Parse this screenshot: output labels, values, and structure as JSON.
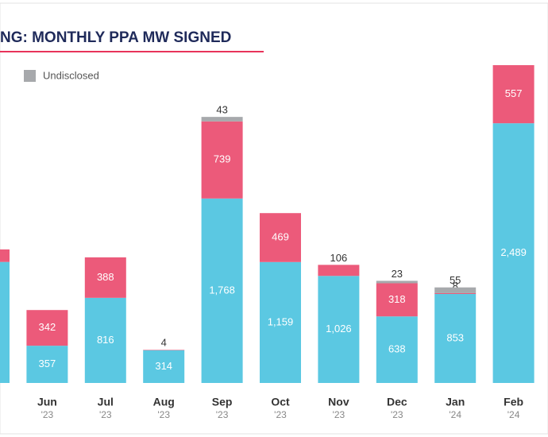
{
  "chart_data": {
    "type": "stacked-bar",
    "title": "NG: MONTHLY PPA MW SIGNED",
    "categories": [
      null,
      "Jun",
      "Jul",
      "Aug",
      "Sep",
      "Oct",
      "Nov",
      "Dec",
      "Jan",
      "Feb"
    ],
    "years": [
      null,
      "'23",
      "'23",
      "'23",
      "'23",
      "'23",
      "'23",
      "'23",
      "'24",
      "'24"
    ],
    "series": [
      {
        "color": "#5bc8e2",
        "values": [
          1160,
          357,
          816,
          314,
          1768,
          1159,
          1026,
          638,
          853,
          2489
        ],
        "value_labels": [
          null,
          "357",
          "816",
          "314",
          "1,768",
          "1,159",
          "1,026",
          "638",
          "853",
          "2,489"
        ]
      },
      {
        "color": "#ec5a7a",
        "values": [
          120,
          342,
          388,
          4,
          739,
          469,
          106,
          318,
          8,
          557
        ],
        "value_labels": [
          null,
          "342",
          "388",
          "4",
          "739",
          "469",
          "106",
          "318",
          "8",
          "557"
        ]
      },
      {
        "name": "Undisclosed",
        "color": "#a7a9ac",
        "values": [
          null,
          null,
          null,
          null,
          43,
          null,
          null,
          23,
          55,
          null
        ],
        "value_labels": [
          null,
          null,
          null,
          null,
          "43",
          null,
          null,
          "23",
          "55",
          null
        ]
      }
    ]
  }
}
